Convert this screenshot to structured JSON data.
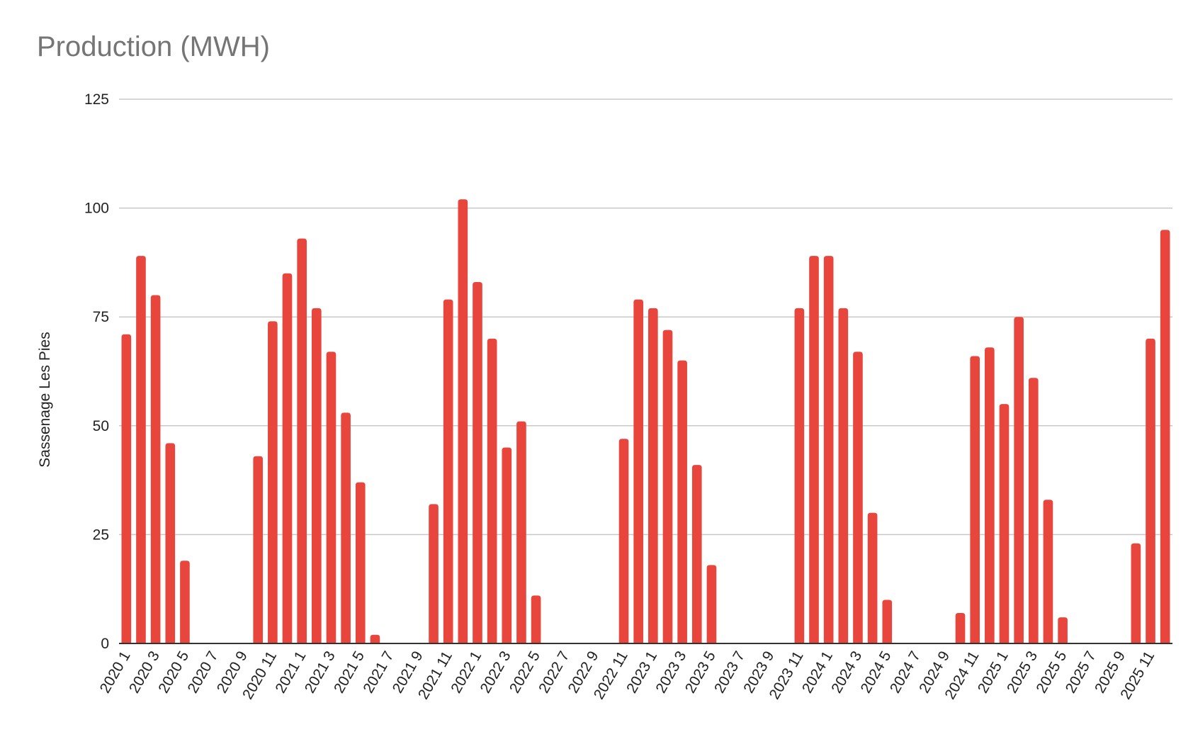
{
  "chart_data": {
    "type": "bar",
    "title": "Production (MWH)",
    "xlabel": "",
    "ylabel": "Sassenage Les Pies",
    "ylim": [
      0,
      125
    ],
    "yticks": [
      0,
      25,
      50,
      75,
      100,
      125
    ],
    "grid": true,
    "legend": "none",
    "bar_color": "#e8453c",
    "categories": [
      "2020 1",
      "2020 2",
      "2020 3",
      "2020 4",
      "2020 5",
      "2020 6",
      "2020 7",
      "2020 8",
      "2020 9",
      "2020 10",
      "2020 11",
      "2020 12",
      "2021 1",
      "2021 2",
      "2021 3",
      "2021 4",
      "2021 5",
      "2021 6",
      "2021 7",
      "2021 8",
      "2021 9",
      "2021 10",
      "2021 11",
      "2021 12",
      "2022 1",
      "2022 2",
      "2022 3",
      "2022 4",
      "2022 5",
      "2022 6",
      "2022 7",
      "2022 8",
      "2022 9",
      "2022 10",
      "2022 11",
      "2022 12",
      "2023 1",
      "2023 2",
      "2023 3",
      "2023 4",
      "2023 5",
      "2023 6",
      "2023 7",
      "2023 8",
      "2023 9",
      "2023 10",
      "2023 11",
      "2023 12",
      "2024 1",
      "2024 2",
      "2024 3",
      "2024 4",
      "2024 5",
      "2024 6",
      "2024 7",
      "2024 8",
      "2024 9",
      "2024 10",
      "2024 11",
      "2024 12",
      "2025 1",
      "2025 2",
      "2025 3",
      "2025 4",
      "2025 5",
      "2025 6",
      "2025 7",
      "2025 8",
      "2025 9",
      "2025 10",
      "2025 11",
      "2025 12"
    ],
    "tick_labels": [
      "2020 1",
      "2020 3",
      "2020 5",
      "2020 7",
      "2020 9",
      "2020 11",
      "2021 1",
      "2021 3",
      "2021 5",
      "2021 7",
      "2021 9",
      "2021 11",
      "2022 1",
      "2022 3",
      "2022 5",
      "2022 7",
      "2022 9",
      "2022 11",
      "2023 1",
      "2023 3",
      "2023 5",
      "2023 7",
      "2023 9",
      "2023 11",
      "2024 1",
      "2024 3",
      "2024 5",
      "2024 7",
      "2024 9",
      "2024 11",
      "2025 1",
      "2025 3",
      "2025 5",
      "2025 7",
      "2025 9",
      "2025 11"
    ],
    "values": [
      71,
      89,
      80,
      46,
      19,
      0,
      0,
      0,
      0,
      43,
      74,
      85,
      93,
      77,
      67,
      53,
      37,
      2,
      0,
      0,
      0,
      32,
      79,
      102,
      83,
      70,
      45,
      51,
      11,
      0,
      0,
      0,
      0,
      0,
      47,
      79,
      77,
      72,
      65,
      41,
      18,
      0,
      0,
      0,
      0,
      0,
      77,
      89,
      89,
      77,
      67,
      30,
      10,
      0,
      0,
      0,
      0,
      7,
      66,
      68,
      55,
      75,
      61,
      33,
      6,
      0,
      0,
      0,
      0,
      23,
      70,
      95
    ]
  }
}
